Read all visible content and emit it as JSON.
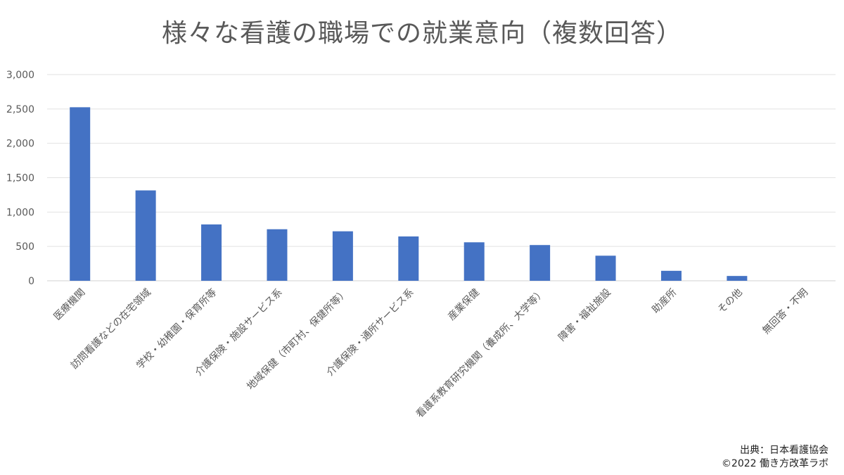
{
  "chart_data": {
    "type": "bar",
    "title": "様々な看護の職場での就業意向（複数回答）",
    "categories": [
      "医療機関",
      "訪問看護などの在宅領域",
      "学校・幼稚園・保育所等",
      "介護保険・施設サービス系",
      "地域保健（市町村、保健所等）",
      "介護保険・通所サービス系",
      "産業保健",
      "看護系教育研究機関（養成所、大学等）",
      "障害・福祉施設",
      "助産所",
      "その他",
      "無回答・不明"
    ],
    "values": [
      2525,
      1315,
      820,
      750,
      720,
      645,
      560,
      520,
      365,
      145,
      70,
      0
    ],
    "ylim": [
      0,
      3000
    ],
    "yticks": [
      0,
      500,
      1000,
      1500,
      2000,
      2500,
      3000
    ],
    "ytick_labels": [
      "0",
      "500",
      "1,000",
      "1,500",
      "2,000",
      "2,500",
      "3,000"
    ],
    "grid": true,
    "bar_color": "#4472c4",
    "legend": false
  },
  "footer": {
    "source": "出典：日本看護協会",
    "copyright": "©2022 働き方改革ラボ"
  }
}
